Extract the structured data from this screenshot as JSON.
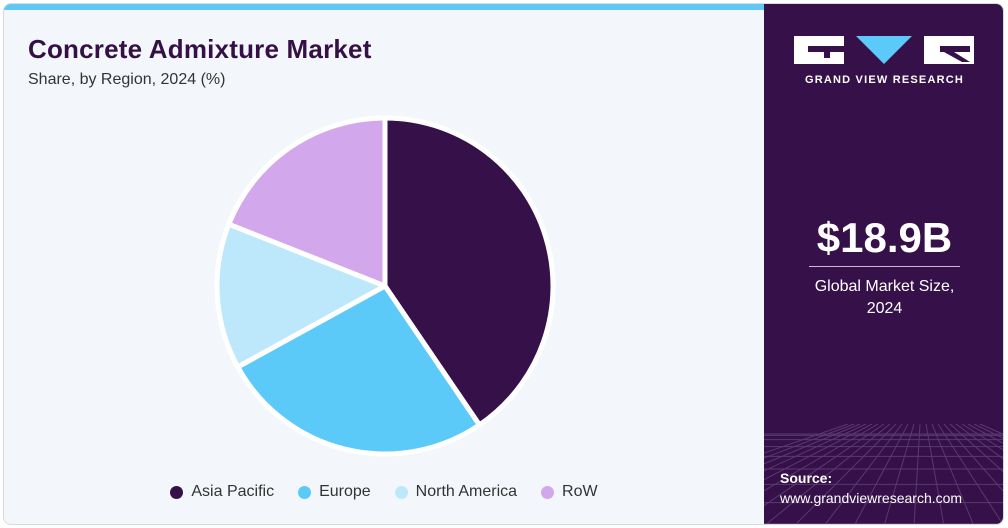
{
  "header": {
    "title": "Concrete Admixture Market",
    "subtitle": "Share, by Region, 2024 (%)"
  },
  "chart_data": {
    "type": "pie",
    "categories": [
      "Asia Pacific",
      "Europe",
      "North America",
      "RoW"
    ],
    "values": [
      40.5,
      26.5,
      14.0,
      19.0
    ],
    "colors": [
      "#361048",
      "#5ccaf8",
      "#bde8fb",
      "#d3a7ec"
    ],
    "legend_position": "bottom"
  },
  "sidebar": {
    "brand": "GRAND VIEW RESEARCH",
    "market_size": "$18.9B",
    "market_size_label_line1": "Global Market Size,",
    "market_size_label_line2": "2024",
    "source_label": "Source:",
    "source_url": "www.grandviewresearch.com"
  }
}
